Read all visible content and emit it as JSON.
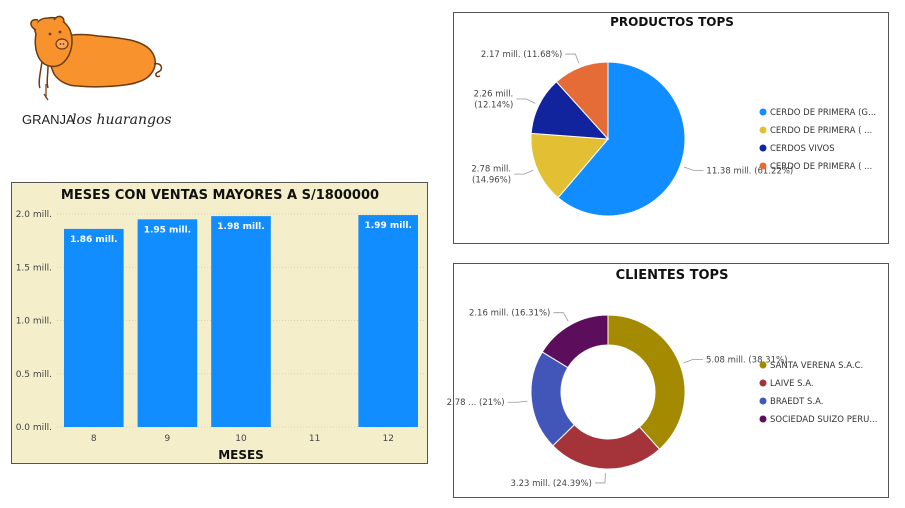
{
  "logo": {
    "text_granja": "GRANJA",
    "text_los": "los huarangos",
    "colors": {
      "body": "#f7922d",
      "outline": "#6b3a12",
      "text": "#222222"
    }
  },
  "chart_data": [
    {
      "id": "bar",
      "type": "bar",
      "title": "MESES CON VENTAS MAYORES A S/1800000",
      "xlabel": "MESES",
      "ylabel": "",
      "categories": [
        "8",
        "9",
        "10",
        "11",
        "12"
      ],
      "values": [
        1.86,
        1.95,
        1.98,
        null,
        1.99
      ],
      "data_labels": [
        "1.86 mill.",
        "1.95 mill.",
        "1.98 mill.",
        "",
        "1.99 mill."
      ],
      "yticks": [
        0,
        0.5,
        1.0,
        1.5,
        2.0
      ],
      "ytick_labels": [
        "0.0 mill.",
        "0.5 mill.",
        "1.0 mill.",
        "1.5 mill.",
        "2.0 mill."
      ],
      "ylim": [
        0,
        2.0
      ],
      "grid": true,
      "bar_color": "#118dff",
      "background": "#f4eecb"
    },
    {
      "id": "pie",
      "type": "pie",
      "title": "PRODUCTOS TOPS",
      "legend_position": "right",
      "slices": [
        {
          "name": "CERDO DE PRIMERA (G...",
          "value": 11.38,
          "percent": 61.22,
          "label": "11.38 mill. (61.22%)",
          "color": "#118dff"
        },
        {
          "name": "CERDO DE PRIMERA ( ...",
          "value": 2.78,
          "percent": 14.96,
          "label": "2.78 mill.|(14.96%)",
          "color": "#e3c033"
        },
        {
          "name": "CERDOS   VIVOS",
          "value": 2.26,
          "percent": 12.14,
          "label": "2.26 mill.|(12.14%)",
          "color": "#12239e"
        },
        {
          "name": "CERDO DE PRIMERA ( ...",
          "value": 2.17,
          "percent": 11.68,
          "label": "2.17 mill. (11.68%)",
          "color": "#e66c37"
        }
      ]
    },
    {
      "id": "donut",
      "type": "pie",
      "title": "CLIENTES TOPS",
      "legend_position": "right",
      "donut": true,
      "slices": [
        {
          "name": "SANTA VERENA S.A.C.",
          "value": 5.08,
          "percent": 38.31,
          "label": "5.08 mill. (38.31%)",
          "color": "#a38a00"
        },
        {
          "name": "LAIVE S.A.",
          "value": 3.23,
          "percent": 24.39,
          "label": "3.23 mill. (24.39%)",
          "color": "#a4343a"
        },
        {
          "name": "BRAEDT S.A.",
          "value": 2.78,
          "percent": 21,
          "label": "2.78 ... (21%)",
          "color": "#4255b8"
        },
        {
          "name": "SOCIEDAD SUIZO PERU...",
          "value": 2.16,
          "percent": 16.31,
          "label": "2.16 mill. (16.31%)",
          "color": "#5c0d5c"
        }
      ]
    }
  ]
}
